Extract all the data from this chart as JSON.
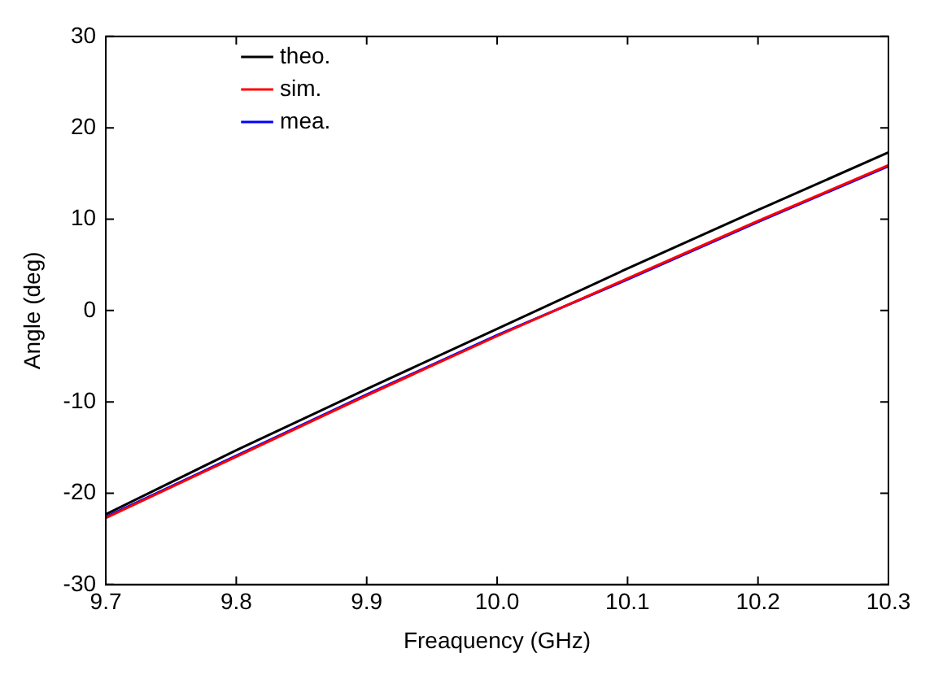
{
  "chart_data": {
    "type": "line",
    "xlabel": "Freaquency (GHz)",
    "ylabel": "Angle (deg)",
    "x": [
      9.7,
      9.8,
      9.9,
      10.0,
      10.1,
      10.2,
      10.3
    ],
    "series": [
      {
        "name": "theo.",
        "color": "#000000",
        "values": [
          -22.3,
          -15.3,
          -8.6,
          -2.0,
          4.6,
          11.0,
          17.3
        ]
      },
      {
        "name": "sim.",
        "color": "#ff0000",
        "values": [
          -22.7,
          -16.0,
          -9.3,
          -2.8,
          3.5,
          9.8,
          15.9
        ]
      },
      {
        "name": "mea.",
        "color": "#0000ff",
        "values": [
          -22.6,
          -15.9,
          -9.2,
          -2.7,
          3.4,
          9.7,
          15.8
        ]
      }
    ],
    "xlim": [
      9.7,
      10.3
    ],
    "xticks": [
      9.7,
      9.8,
      9.9,
      {
        "value": 10,
        "label": "10.0"
      },
      10.1,
      10.2,
      10.3
    ],
    "ylim": [
      -30,
      30
    ],
    "yticks": [
      -30,
      -20,
      -10,
      0,
      10,
      20,
      30
    ],
    "grid": false,
    "legend": "top left",
    "marker": "none",
    "line_style": "solid"
  }
}
